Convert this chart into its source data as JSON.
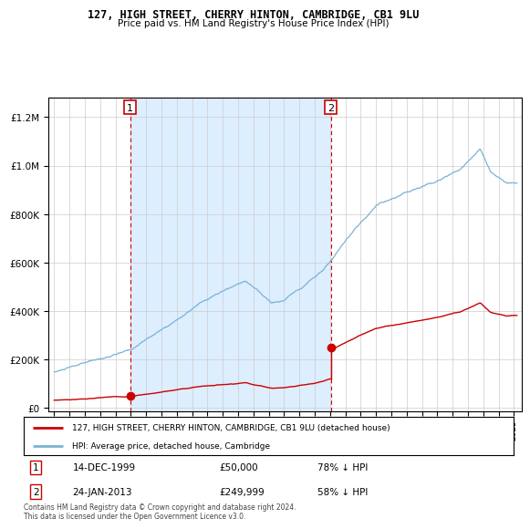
{
  "title": "127, HIGH STREET, CHERRY HINTON, CAMBRIDGE, CB1 9LU",
  "subtitle": "Price paid vs. HM Land Registry's House Price Index (HPI)",
  "footer": "Contains HM Land Registry data © Crown copyright and database right 2024.\nThis data is licensed under the Open Government Licence v3.0.",
  "legend_property": "127, HIGH STREET, CHERRY HINTON, CAMBRIDGE, CB1 9LU (detached house)",
  "legend_hpi": "HPI: Average price, detached house, Cambridge",
  "sale1_date": "14-DEC-1999",
  "sale1_price": "£50,000",
  "sale1_hpi": "78% ↓ HPI",
  "sale1_year": 1999.95,
  "sale1_value": 50000,
  "sale2_date": "24-JAN-2013",
  "sale2_price": "£249,999",
  "sale2_hpi": "58% ↓ HPI",
  "sale2_year": 2013.06,
  "sale2_value": 249999,
  "property_color": "#cc0000",
  "hpi_color": "#7ab3d4",
  "shade_color": "#ddeeff",
  "marker_color": "#cc0000",
  "vline_color": "#cc0000",
  "background_color": "#ffffff",
  "ylim_min": -15000,
  "ylim_max": 1280000,
  "xlim_min": 1994.6,
  "xlim_max": 2025.5
}
